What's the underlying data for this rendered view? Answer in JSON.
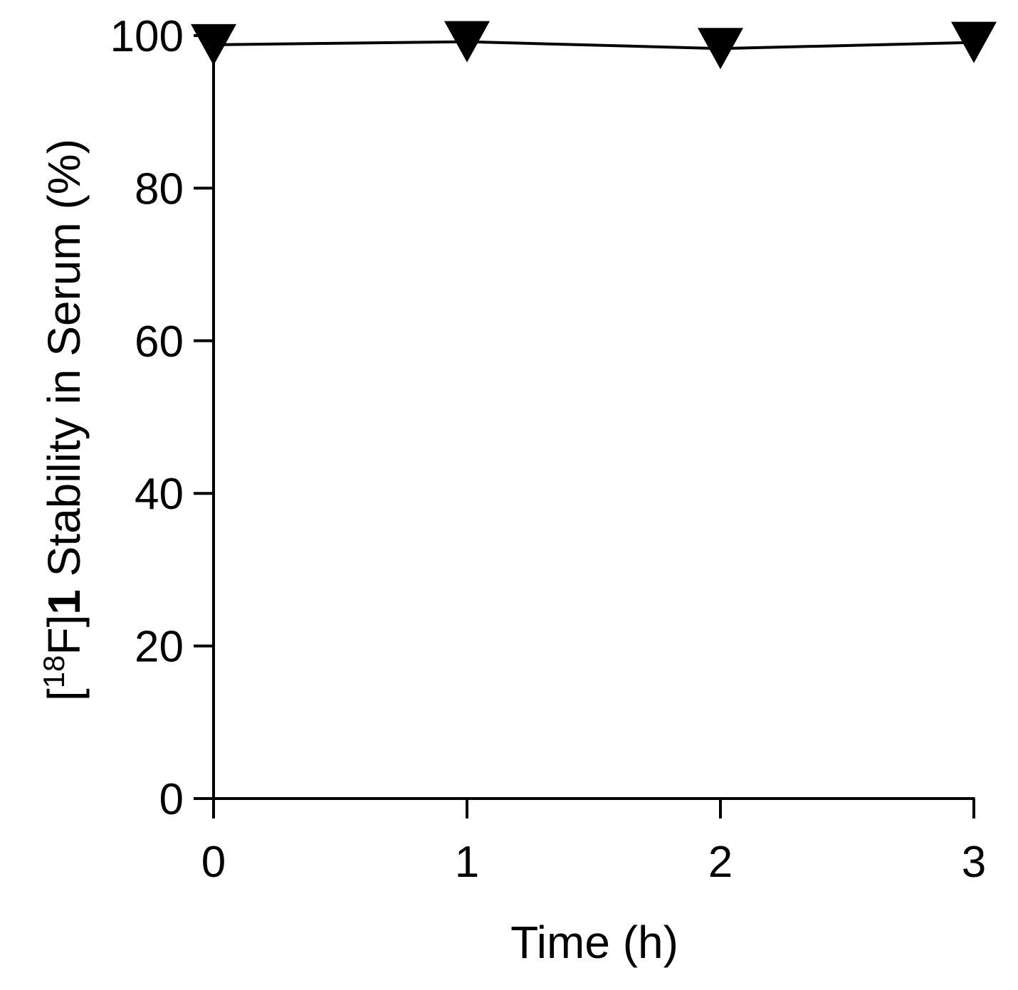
{
  "chart_data": {
    "type": "line",
    "title": "",
    "xlabel": "Time (h)",
    "ylabel": {
      "bracket_open": "[",
      "superscript": "18",
      "element": "F]",
      "compound": "1",
      "rest": " Stability in Serum (%)"
    },
    "x": [
      0,
      1,
      2,
      3
    ],
    "series": [
      {
        "values": [
          98.8,
          99.2,
          98.3,
          99.1
        ]
      }
    ],
    "xlim": [
      0,
      3
    ],
    "ylim": [
      0,
      100
    ],
    "xticks": [
      "0",
      "1",
      "2",
      "3"
    ],
    "yticks": [
      "0",
      "20",
      "40",
      "60",
      "80",
      "100"
    ],
    "marker": "down-triangle",
    "grid": false,
    "colors": {
      "line": "#000000",
      "marker": "#000000",
      "axis": "#000000"
    }
  }
}
